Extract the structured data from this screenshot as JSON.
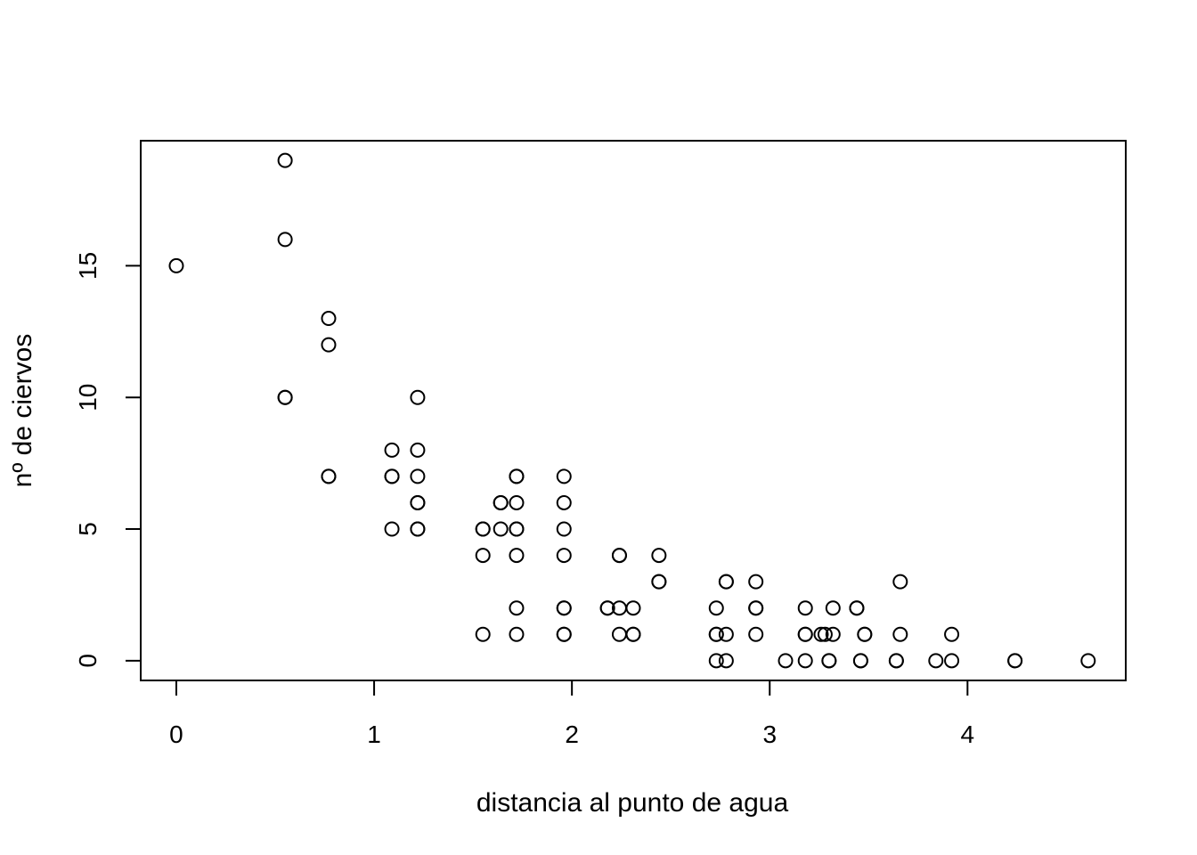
{
  "chart_data": {
    "type": "scatter",
    "xlabel": "distancia al punto de agua",
    "ylabel": "nº de ciervos",
    "xlim": [
      -0.18,
      4.8
    ],
    "ylim": [
      -0.75,
      19.75
    ],
    "xticks": [
      0,
      1,
      2,
      3,
      4
    ],
    "yticks": [
      0,
      5,
      10,
      15
    ],
    "xtick_labels": [
      "0",
      "1",
      "2",
      "3",
      "4"
    ],
    "ytick_labels": [
      "0",
      "5",
      "10",
      "15"
    ],
    "marker": "open-circle",
    "color": "#000000",
    "points": [
      [
        0.0,
        15
      ],
      [
        0.55,
        19
      ],
      [
        0.55,
        16
      ],
      [
        0.55,
        10
      ],
      [
        0.55,
        10
      ],
      [
        0.77,
        13
      ],
      [
        0.77,
        12
      ],
      [
        0.77,
        7
      ],
      [
        0.77,
        7
      ],
      [
        1.09,
        8
      ],
      [
        1.09,
        7
      ],
      [
        1.09,
        7
      ],
      [
        1.09,
        5
      ],
      [
        1.22,
        10
      ],
      [
        1.22,
        8
      ],
      [
        1.22,
        7
      ],
      [
        1.22,
        6
      ],
      [
        1.22,
        6
      ],
      [
        1.22,
        5
      ],
      [
        1.22,
        5
      ],
      [
        1.55,
        5
      ],
      [
        1.55,
        5
      ],
      [
        1.55,
        4
      ],
      [
        1.55,
        1
      ],
      [
        1.64,
        6
      ],
      [
        1.64,
        6
      ],
      [
        1.64,
        5
      ],
      [
        1.72,
        7
      ],
      [
        1.72,
        7
      ],
      [
        1.72,
        6
      ],
      [
        1.72,
        5
      ],
      [
        1.72,
        5
      ],
      [
        1.72,
        4
      ],
      [
        1.72,
        2
      ],
      [
        1.72,
        1
      ],
      [
        1.96,
        7
      ],
      [
        1.96,
        6
      ],
      [
        1.96,
        5
      ],
      [
        1.96,
        4
      ],
      [
        1.96,
        2
      ],
      [
        1.96,
        2
      ],
      [
        1.96,
        1
      ],
      [
        1.96,
        1
      ],
      [
        2.18,
        2
      ],
      [
        2.18,
        2
      ],
      [
        2.24,
        4
      ],
      [
        2.24,
        4
      ],
      [
        2.24,
        2
      ],
      [
        2.24,
        1
      ],
      [
        2.31,
        2
      ],
      [
        2.31,
        1
      ],
      [
        2.31,
        1
      ],
      [
        2.44,
        4
      ],
      [
        2.44,
        3
      ],
      [
        2.44,
        3
      ],
      [
        2.73,
        2
      ],
      [
        2.73,
        1
      ],
      [
        2.73,
        1
      ],
      [
        2.73,
        0
      ],
      [
        2.78,
        3
      ],
      [
        2.78,
        3
      ],
      [
        2.78,
        1
      ],
      [
        2.78,
        0
      ],
      [
        2.93,
        3
      ],
      [
        2.93,
        2
      ],
      [
        2.93,
        2
      ],
      [
        2.93,
        1
      ],
      [
        3.08,
        0
      ],
      [
        3.18,
        2
      ],
      [
        3.18,
        1
      ],
      [
        3.18,
        1
      ],
      [
        3.18,
        0
      ],
      [
        3.26,
        1
      ],
      [
        3.28,
        1
      ],
      [
        3.32,
        2
      ],
      [
        3.32,
        1
      ],
      [
        3.3,
        0
      ],
      [
        3.3,
        0
      ],
      [
        3.44,
        2
      ],
      [
        3.44,
        2
      ],
      [
        3.46,
        0
      ],
      [
        3.46,
        0
      ],
      [
        3.48,
        1
      ],
      [
        3.48,
        1
      ],
      [
        3.64,
        0
      ],
      [
        3.64,
        0
      ],
      [
        3.66,
        3
      ],
      [
        3.66,
        1
      ],
      [
        3.84,
        0
      ],
      [
        3.92,
        1
      ],
      [
        3.92,
        0
      ],
      [
        4.24,
        0
      ],
      [
        4.24,
        0
      ],
      [
        4.61,
        0
      ]
    ]
  }
}
